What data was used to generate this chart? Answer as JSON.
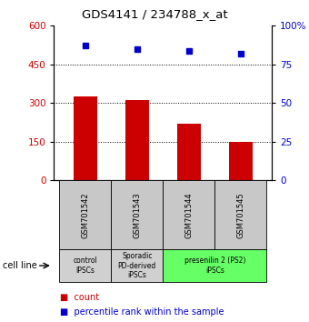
{
  "title": "GDS4141 / 234788_x_at",
  "samples": [
    "GSM701542",
    "GSM701543",
    "GSM701544",
    "GSM701545"
  ],
  "counts": [
    325,
    310,
    220,
    150
  ],
  "percentile_ranks": [
    87,
    85,
    84,
    82
  ],
  "ylim_left": [
    0,
    600
  ],
  "ylim_right": [
    0,
    100
  ],
  "yticks_left": [
    0,
    150,
    300,
    450,
    600
  ],
  "yticks_right": [
    0,
    25,
    50,
    75,
    100
  ],
  "bar_color": "#cc0000",
  "dot_color": "#0000cc",
  "group_info": [
    {
      "label": "control\nIPSCs",
      "xmin": -0.5,
      "xmax": 0.5,
      "color": "#d0d0d0"
    },
    {
      "label": "Sporadic\nPD-derived\niPSCs",
      "xmin": 0.5,
      "xmax": 1.5,
      "color": "#d0d0d0"
    },
    {
      "label": "presenilin 2 (PS2)\niPSCs",
      "xmin": 1.5,
      "xmax": 3.5,
      "color": "#66ff66"
    }
  ],
  "cell_line_label": "cell line",
  "legend_count_label": "count",
  "legend_percentile_label": "percentile rank within the sample",
  "sample_box_color": "#c8c8c8",
  "dotted_yticks": [
    150,
    300,
    450
  ]
}
